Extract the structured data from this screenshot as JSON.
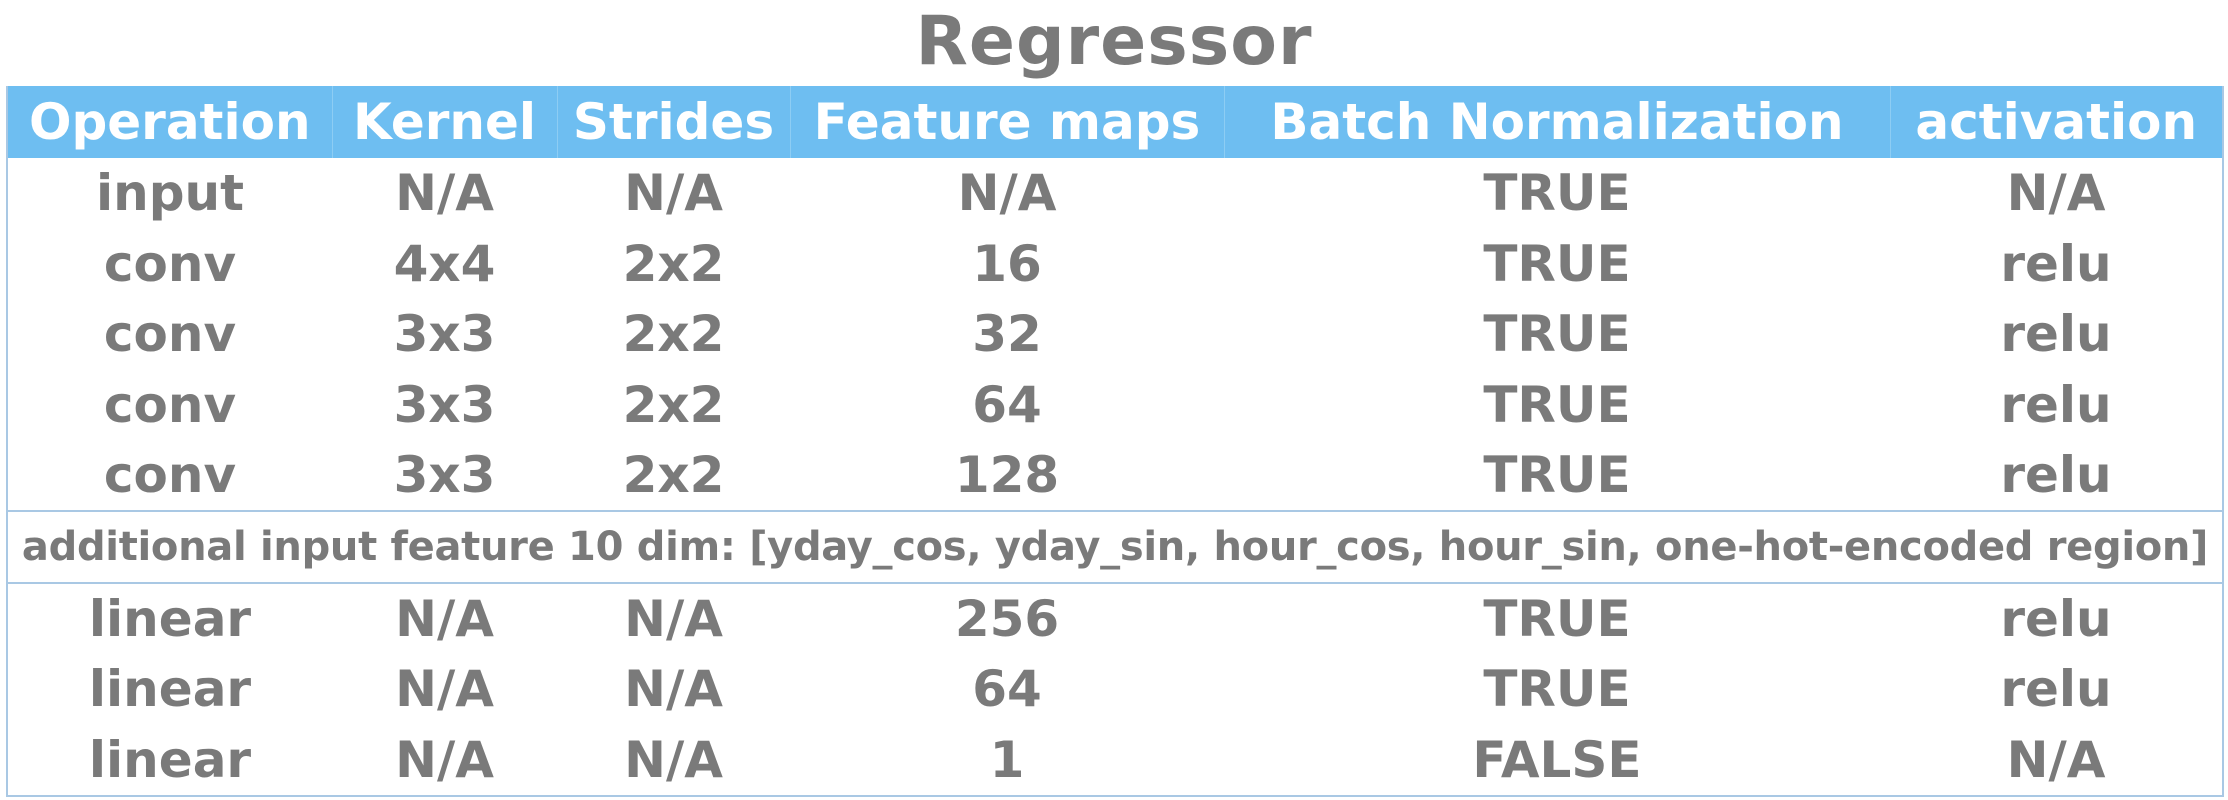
{
  "title": "Regressor",
  "headers": [
    "Operation",
    "Kernel",
    "Strides",
    "Feature maps",
    "Batch Normalization",
    "activation"
  ],
  "rows_top": [
    [
      "input",
      "N/A",
      "N/A",
      "N/A",
      "TRUE",
      "N/A"
    ],
    [
      "conv",
      "4x4",
      "2x2",
      "16",
      "TRUE",
      "relu"
    ],
    [
      "conv",
      "3x3",
      "2x2",
      "32",
      "TRUE",
      "relu"
    ],
    [
      "conv",
      "3x3",
      "2x2",
      "64",
      "TRUE",
      "relu"
    ],
    [
      "conv",
      "3x3",
      "2x2",
      "128",
      "TRUE",
      "relu"
    ]
  ],
  "note": "additional input feature 10 dim: [yday_cos, yday_sin, hour_cos, hour_sin, one-hot-encoded region]",
  "rows_bottom": [
    [
      "linear",
      "N/A",
      "N/A",
      "256",
      "TRUE",
      "relu"
    ],
    [
      "linear",
      "N/A",
      "N/A",
      "64",
      "TRUE",
      "relu"
    ],
    [
      "linear",
      "N/A",
      "N/A",
      "1",
      "FALSE",
      "N/A"
    ]
  ],
  "colors": {
    "header_bg": "#6ebef1",
    "header_text": "#ffffff",
    "body_text": "#7a7a7a",
    "border": "#a9c8e4"
  }
}
